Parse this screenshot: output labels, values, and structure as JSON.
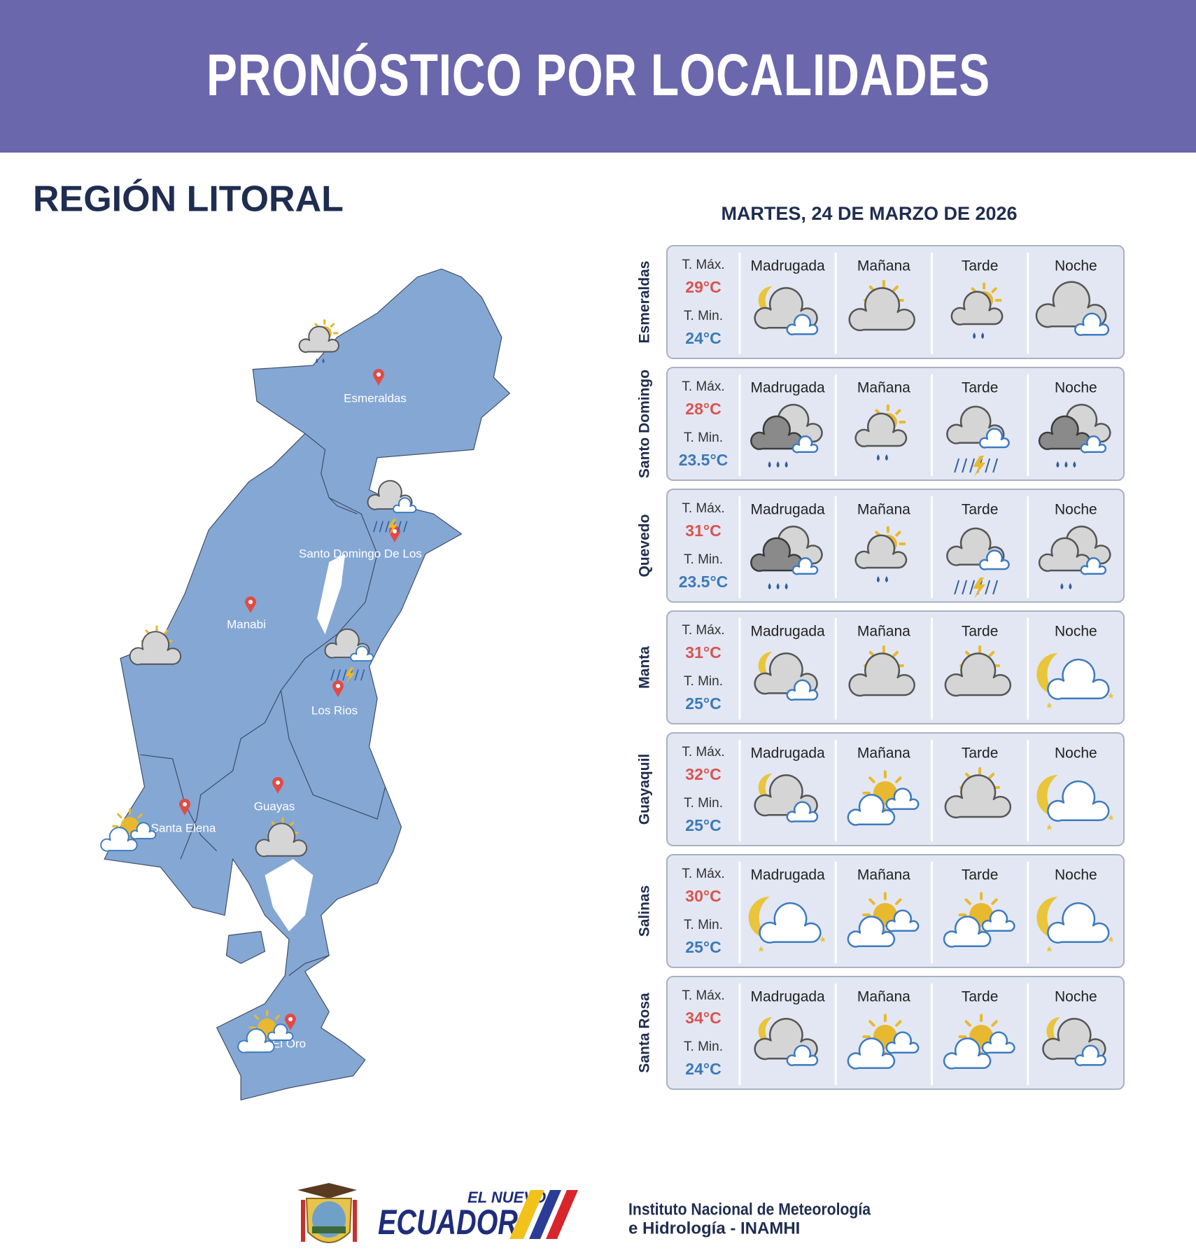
{
  "header": {
    "title": "PRONÓSTICO POR LOCALIDADES"
  },
  "region": "REGIÓN LITORAL",
  "date": "MARTES, 24 DE MARZO DE 2026",
  "map": {
    "labels": [
      "Esmeraldas",
      "Santo Domingo De Los",
      "Manabi",
      "Los Rios",
      "Guayas",
      "Santa Elena",
      "El Oro"
    ]
  },
  "forecast": {
    "tmax_label": "T. Máx.",
    "tmin_label": "T. Min.",
    "periods": [
      "Madrugada",
      "Mañana",
      "Tarde",
      "Noche"
    ],
    "rows": [
      {
        "location": "Esmeraldas",
        "tmax": "29°C",
        "tmin": "24°C"
      },
      {
        "location": "Santo Domingo",
        "tmax": "28°C",
        "tmin": "23.5°C"
      },
      {
        "location": "Quevedo",
        "tmax": "31°C",
        "tmin": "23.5°C"
      },
      {
        "location": "Manta",
        "tmax": "31°C",
        "tmin": "25°C"
      },
      {
        "location": "Guayaquil",
        "tmax": "32°C",
        "tmin": "25°C"
      },
      {
        "location": "Salinas",
        "tmax": "30°C",
        "tmin": "25°C"
      },
      {
        "location": "Santa Rosa",
        "tmax": "34°C",
        "tmin": "24°C"
      }
    ]
  },
  "footer": {
    "logo_small": "EL NUEVO",
    "logo_big": "ECUADOR",
    "institute_line1": "Instituto Nacional de Meteorología",
    "institute_line2": "e Hidrología - INAMHI"
  }
}
